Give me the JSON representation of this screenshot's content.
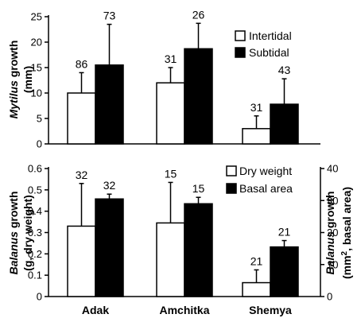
{
  "chart_data": [
    {
      "type": "bar",
      "categories": [
        "Adak",
        "Amchitka",
        "Shemya"
      ],
      "ylabel": {
        "italic": "Mytilus",
        "rest": " growth",
        "line2": "(mm)"
      },
      "ylim": [
        0,
        25
      ],
      "yticks": [
        "0",
        "5",
        "10",
        "15",
        "20",
        "25"
      ],
      "legend_position": "top-right",
      "series": [
        {
          "name": "Intertidal",
          "color": "#ffffff",
          "values": [
            10,
            12,
            3
          ],
          "error": [
            4,
            3,
            2.5
          ],
          "n": [
            "86",
            "31",
            "31"
          ]
        },
        {
          "name": "Subtidal",
          "color": "#000000",
          "values": [
            15.5,
            18.7,
            7.8
          ],
          "error": [
            8,
            5,
            5
          ],
          "n": [
            "73",
            "26",
            "43"
          ]
        }
      ]
    },
    {
      "type": "bar",
      "categories": [
        "Adak",
        "Amchitka",
        "Shemya"
      ],
      "ylabel": {
        "italic": "Balanus",
        "rest": " growth",
        "line2": "(g, dry weight)"
      },
      "ylabel_right": {
        "italic": "Balanus",
        "rest": " growth",
        "line2_pre": "(mm",
        "line2_sup": "2",
        "line2_post": ", basal area)"
      },
      "ylim": [
        0,
        0.6
      ],
      "yticks": [
        "0",
        "0.1",
        "0.2",
        "0.3",
        "0.4",
        "0.5",
        "0.6"
      ],
      "ylim_right": [
        0,
        40
      ],
      "yticks_right": [
        "0",
        "10",
        "20",
        "30",
        "40"
      ],
      "legend_position": "top-right",
      "series": [
        {
          "name": "Dry weight",
          "axis": "left",
          "color": "#ffffff",
          "values": [
            0.33,
            0.345,
            0.065
          ],
          "error": [
            0.2,
            0.19,
            0.06
          ],
          "n": [
            "32",
            "15",
            "21"
          ]
        },
        {
          "name": "Basal area",
          "axis": "right",
          "color": "#000000",
          "values": [
            30.5,
            29,
            15.5
          ],
          "error": [
            1.5,
            2,
            2
          ],
          "n": [
            "32",
            "15",
            "21"
          ]
        }
      ]
    }
  ]
}
